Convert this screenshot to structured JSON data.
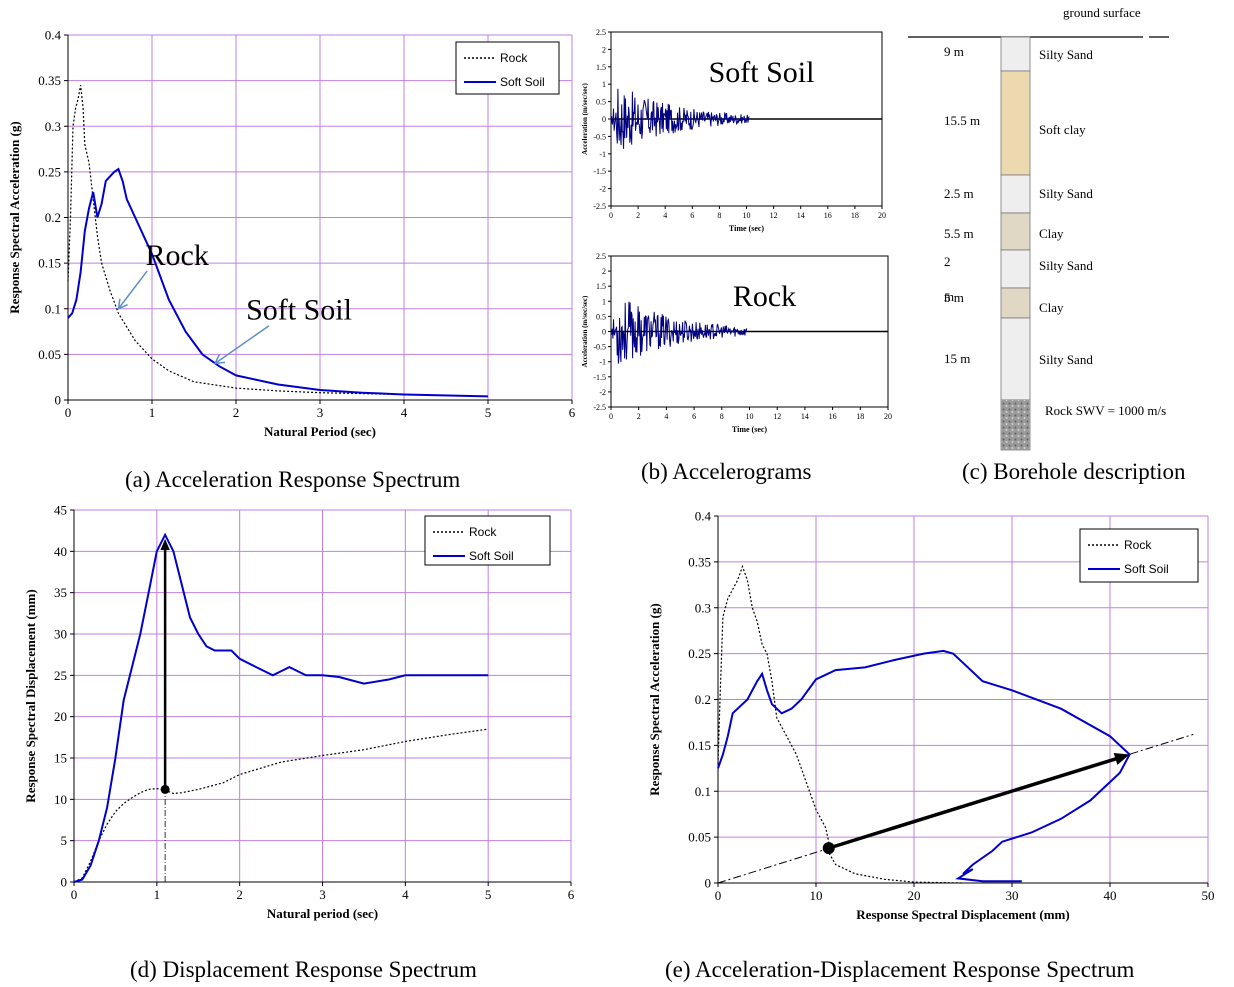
{
  "chart_data": [
    {
      "id": "a",
      "type": "line",
      "caption": "(a) Acceleration Response Spectrum",
      "xlabel": "Natural Period (sec)",
      "ylabel": "Response Spectral Acceleration (g)",
      "xlim": [
        0,
        6
      ],
      "ylim": [
        0,
        0.4
      ],
      "xticks": [
        "0",
        "1",
        "2",
        "3",
        "4",
        "5",
        "6"
      ],
      "yticks": [
        "0",
        "0.05",
        "0.1",
        "0.15",
        "0.2",
        "0.25",
        "0.3",
        "0.35",
        "0.4"
      ],
      "grid": true,
      "legend_position": "top-right",
      "series": [
        {
          "name": "Rock",
          "style": "dotted",
          "color": "#000000",
          "x": [
            0,
            0.03,
            0.06,
            0.09,
            0.12,
            0.15,
            0.18,
            0.2,
            0.25,
            0.3,
            0.35,
            0.4,
            0.5,
            0.6,
            0.7,
            0.8,
            1.0,
            1.2,
            1.5,
            2.0,
            2.5,
            3.0,
            4.0,
            5.0
          ],
          "y": [
            0.13,
            0.2,
            0.3,
            0.32,
            0.33,
            0.345,
            0.32,
            0.28,
            0.26,
            0.22,
            0.18,
            0.15,
            0.12,
            0.095,
            0.08,
            0.065,
            0.045,
            0.032,
            0.02,
            0.013,
            0.01,
            0.008,
            0.006,
            0.004
          ]
        },
        {
          "name": "Soft Soil",
          "style": "solid",
          "color": "#0000CC",
          "x": [
            0,
            0.05,
            0.1,
            0.15,
            0.2,
            0.25,
            0.3,
            0.35,
            0.4,
            0.45,
            0.5,
            0.55,
            0.6,
            0.65,
            0.7,
            0.8,
            0.9,
            1.0,
            1.2,
            1.4,
            1.6,
            1.8,
            2.0,
            2.5,
            3.0,
            3.5,
            4.0,
            5.0
          ],
          "y": [
            0.09,
            0.095,
            0.11,
            0.14,
            0.185,
            0.21,
            0.228,
            0.2,
            0.215,
            0.24,
            0.245,
            0.25,
            0.253,
            0.24,
            0.22,
            0.2,
            0.18,
            0.16,
            0.11,
            0.075,
            0.05,
            0.037,
            0.027,
            0.017,
            0.011,
            0.008,
            0.006,
            0.004
          ]
        }
      ],
      "annotations": [
        {
          "text": "Rock",
          "x": 1.3,
          "y": 0.148,
          "target_x": 0.6,
          "target_y": 0.1
        },
        {
          "text": "Soft Soil",
          "x": 2.75,
          "y": 0.088,
          "target_x": 1.75,
          "target_y": 0.04
        }
      ]
    },
    {
      "id": "b",
      "type": "line",
      "caption": "(b) Accelerograms",
      "panels": [
        {
          "label": "Soft Soil",
          "xlabel": "Time (sec)",
          "ylabel": "Acceleration (m/sec/sec)",
          "xlim": [
            0,
            20
          ],
          "ylim": [
            -2.5,
            2.5
          ],
          "xticks": [
            "0",
            "2",
            "4",
            "6",
            "8",
            "10",
            "12",
            "14",
            "16",
            "18",
            "20"
          ],
          "yticks": [
            "-2.5",
            "-2",
            "-1.5",
            "-1",
            "-0.5",
            "0",
            "0.5",
            "1",
            "1.5",
            "2",
            "2.5"
          ],
          "record_end": 10.2,
          "peak": 1.0,
          "color": "#000080"
        },
        {
          "label": "Rock",
          "xlabel": "Time (sec)",
          "ylabel": "Acceleration (m/sec/sec)",
          "xlim": [
            0,
            20
          ],
          "ylim": [
            -2.5,
            2.5
          ],
          "xticks": [
            "0",
            "2",
            "4",
            "6",
            "8",
            "10",
            "12",
            "14",
            "16",
            "18",
            "20"
          ],
          "yticks": [
            "-2.5",
            "-2",
            "-1.5",
            "-1",
            "-0.5",
            "0",
            "0.5",
            "1",
            "1.5",
            "2",
            "2.5"
          ],
          "record_end": 9.8,
          "peak": 1.2,
          "color": "#000080"
        }
      ]
    },
    {
      "id": "d",
      "type": "line",
      "caption": "(d) Displacement Response Spectrum",
      "xlabel": "Natural period (sec)",
      "ylabel": "Response Spectral Displacement (mm)",
      "xlim": [
        0,
        6
      ],
      "ylim": [
        0,
        45
      ],
      "xticks": [
        "0",
        "1",
        "2",
        "3",
        "4",
        "5",
        "6"
      ],
      "yticks": [
        "0",
        "5",
        "10",
        "15",
        "20",
        "25",
        "30",
        "35",
        "40",
        "45"
      ],
      "grid": true,
      "legend_position": "top-right",
      "series": [
        {
          "name": "Rock",
          "style": "dotted",
          "color": "#000000",
          "x": [
            0,
            0.1,
            0.2,
            0.3,
            0.4,
            0.5,
            0.6,
            0.7,
            0.8,
            0.9,
            1.0,
            1.1,
            1.2,
            1.3,
            1.5,
            1.8,
            2.0,
            2.5,
            3.0,
            3.5,
            4.0,
            4.5,
            5.0
          ],
          "y": [
            0,
            0.5,
            2.5,
            5,
            7,
            8.5,
            9.5,
            10.2,
            10.8,
            11.2,
            11.3,
            11.1,
            10.7,
            10.8,
            11.2,
            12,
            13,
            14.5,
            15.3,
            16,
            17,
            17.8,
            18.5
          ]
        },
        {
          "name": "Soft Soil",
          "style": "solid",
          "color": "#0000CC",
          "x": [
            0,
            0.1,
            0.2,
            0.3,
            0.4,
            0.5,
            0.6,
            0.7,
            0.8,
            0.9,
            1.0,
            1.1,
            1.2,
            1.3,
            1.4,
            1.5,
            1.6,
            1.7,
            1.8,
            1.9,
            2.0,
            2.2,
            2.4,
            2.6,
            2.8,
            3.0,
            3.2,
            3.5,
            3.8,
            4.0,
            4.5,
            5.0
          ],
          "y": [
            0,
            0.3,
            2,
            5,
            9,
            15,
            22,
            26,
            30,
            35,
            40,
            42,
            40,
            36,
            32,
            30,
            28.5,
            28,
            28,
            28,
            27,
            26,
            25,
            26,
            25,
            25,
            24.8,
            24,
            24.5,
            25,
            25,
            25
          ]
        }
      ],
      "annotations": [
        {
          "type": "arrow",
          "from_x": 1.1,
          "from_y": 11.2,
          "to_x": 1.1,
          "to_y": 41.5
        },
        {
          "type": "dashdot-line",
          "x": 1.1,
          "y_from": 0,
          "y_to": 11.2
        }
      ]
    },
    {
      "id": "e",
      "type": "line",
      "caption": "(e) Acceleration-Displacement Response Spectrum",
      "xlabel": "Response Spectral Displacement (mm)",
      "ylabel": "Response Spectral Acceleration (g)",
      "xlim": [
        0,
        50
      ],
      "ylim": [
        0,
        0.4
      ],
      "xticks": [
        "0",
        "10",
        "20",
        "30",
        "40",
        "50"
      ],
      "yticks": [
        "0",
        "0.05",
        "0.1",
        "0.15",
        "0.2",
        "0.25",
        "0.3",
        "0.35",
        "0.4"
      ],
      "grid": true,
      "legend_position": "top-right",
      "series": [
        {
          "name": "Rock",
          "style": "dotted",
          "color": "#000000",
          "x": [
            0,
            0.2,
            0.5,
            1.0,
            1.5,
            2.0,
            2.5,
            3.0,
            3.5,
            4.0,
            4.5,
            5.0,
            5.5,
            6.0,
            7.0,
            8.0,
            9.0,
            10.0,
            11.0,
            11.3,
            11.2,
            12.0,
            14.0,
            17.0,
            20.0,
            25.0
          ],
          "y": [
            0.13,
            0.2,
            0.29,
            0.31,
            0.32,
            0.33,
            0.345,
            0.33,
            0.3,
            0.285,
            0.26,
            0.25,
            0.22,
            0.18,
            0.16,
            0.14,
            0.11,
            0.08,
            0.06,
            0.045,
            0.035,
            0.02,
            0.01,
            0.004,
            0.001,
            0
          ]
        },
        {
          "name": "Soft Soil",
          "style": "solid",
          "color": "#0000CC",
          "x": [
            0,
            0.5,
            1.0,
            1.5,
            2.0,
            3.0,
            4.0,
            4.5,
            5.0,
            5.5,
            6.5,
            7.5,
            8.5,
            10.0,
            12.0,
            15.0,
            18.0,
            21.0,
            23.0,
            24.0,
            25.0,
            27.0,
            30.0,
            35.0,
            40.0,
            42.0,
            41.0,
            38.0,
            35.0,
            32.0,
            29.0,
            28.0,
            26.0,
            25.0,
            26.0,
            24.5,
            27.0,
            31.0
          ],
          "y": [
            0.125,
            0.14,
            0.16,
            0.185,
            0.19,
            0.2,
            0.22,
            0.228,
            0.21,
            0.195,
            0.185,
            0.19,
            0.2,
            0.222,
            0.232,
            0.235,
            0.243,
            0.25,
            0.253,
            0.25,
            0.24,
            0.22,
            0.21,
            0.19,
            0.16,
            0.14,
            0.12,
            0.09,
            0.07,
            0.055,
            0.045,
            0.035,
            0.02,
            0.01,
            0.015,
            0.005,
            0.002,
            0.002
          ]
        }
      ],
      "annotations": [
        {
          "type": "dashdot-line",
          "from_x": 0,
          "from_y": 0,
          "to_x": 48.5,
          "to_y": 0.162
        },
        {
          "type": "arrow",
          "from_x": 11.3,
          "from_y": 0.038,
          "to_x": 42,
          "to_y": 0.14
        }
      ]
    }
  ],
  "borehole": {
    "caption": "(c) Borehole description",
    "ground_label": "ground surface",
    "layers": [
      {
        "thickness": "9 m",
        "name": "Silty Sand",
        "color": "#EEEEEE"
      },
      {
        "thickness": "15.5 m",
        "name": "Soft clay",
        "color": "#EDD9B0"
      },
      {
        "thickness": "2.5 m",
        "name": "Silty Sand",
        "color": "#EEEEEE"
      },
      {
        "thickness": "5.5 m",
        "name": "Clay",
        "color": "#E0D7C5"
      },
      {
        "thickness": "2",
        "name": "Silty Sand",
        "color": "#EEEEEE"
      },
      {
        "thickness": "5 m",
        "name": "Clay",
        "color": "#E0D7C5"
      },
      {
        "thickness": "15 m",
        "name": "Silty Sand",
        "color": "#EEEEEE"
      },
      {
        "thickness": "",
        "name": "Rock SWV = 1000  m/s",
        "color": "#A8A8A8"
      }
    ],
    "stray_label": "m"
  }
}
